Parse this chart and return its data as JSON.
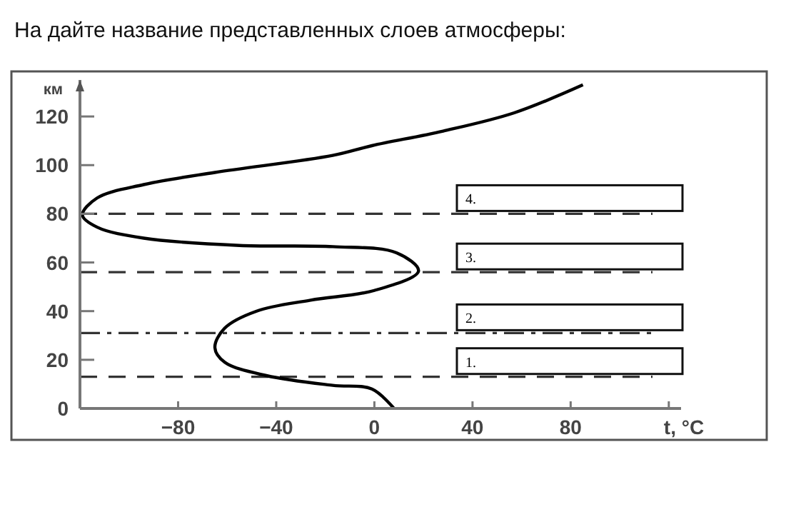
{
  "chart_data": {
    "type": "line",
    "title": "На дайте название представленных слоев атмосферы:",
    "xlabel": "t, °C",
    "ylabel": "км",
    "marker": "none",
    "line_style": "solid",
    "grid": false,
    "annotations": [
      "1.",
      "2.",
      "3.",
      "4."
    ],
    "xlim": [
      -120,
      125
    ],
    "xticks": [
      -80,
      -40,
      0,
      40,
      80,
      {
        "value": 120,
        "label": null
      }
    ],
    "ylim": [
      0,
      135
    ],
    "yticks": [
      0,
      20,
      40,
      60,
      80,
      100,
      120
    ],
    "series": [
      {
        "color": "#000000",
        "x": [
          8,
          -1,
          -17,
          -44,
          -61,
          -65,
          -61,
          -48,
          -26,
          0,
          18,
          9,
          -17,
          -55,
          -94,
          -113,
          -119,
          -113,
          -94,
          -65,
          -17,
          -1,
          28,
          57,
          85
        ],
        "values": [
          0,
          8,
          9.5,
          13.5,
          19,
          25,
          33,
          40,
          44.5,
          48.5,
          56.5,
          64,
          66.5,
          67,
          70,
          74.5,
          79.5,
          86.5,
          92,
          97,
          104,
          108,
          114,
          121.5,
          133
        ]
      }
    ],
    "ref_lines": [
      {
        "axis": "y",
        "value": 13,
        "line_style": "dashed"
      },
      {
        "axis": "y",
        "value": 31,
        "line_style": "dashdot"
      },
      {
        "axis": "y",
        "value": 56,
        "line_style": "dashed"
      },
      {
        "axis": "y",
        "value": 80,
        "line_style": "dashed"
      }
    ]
  }
}
